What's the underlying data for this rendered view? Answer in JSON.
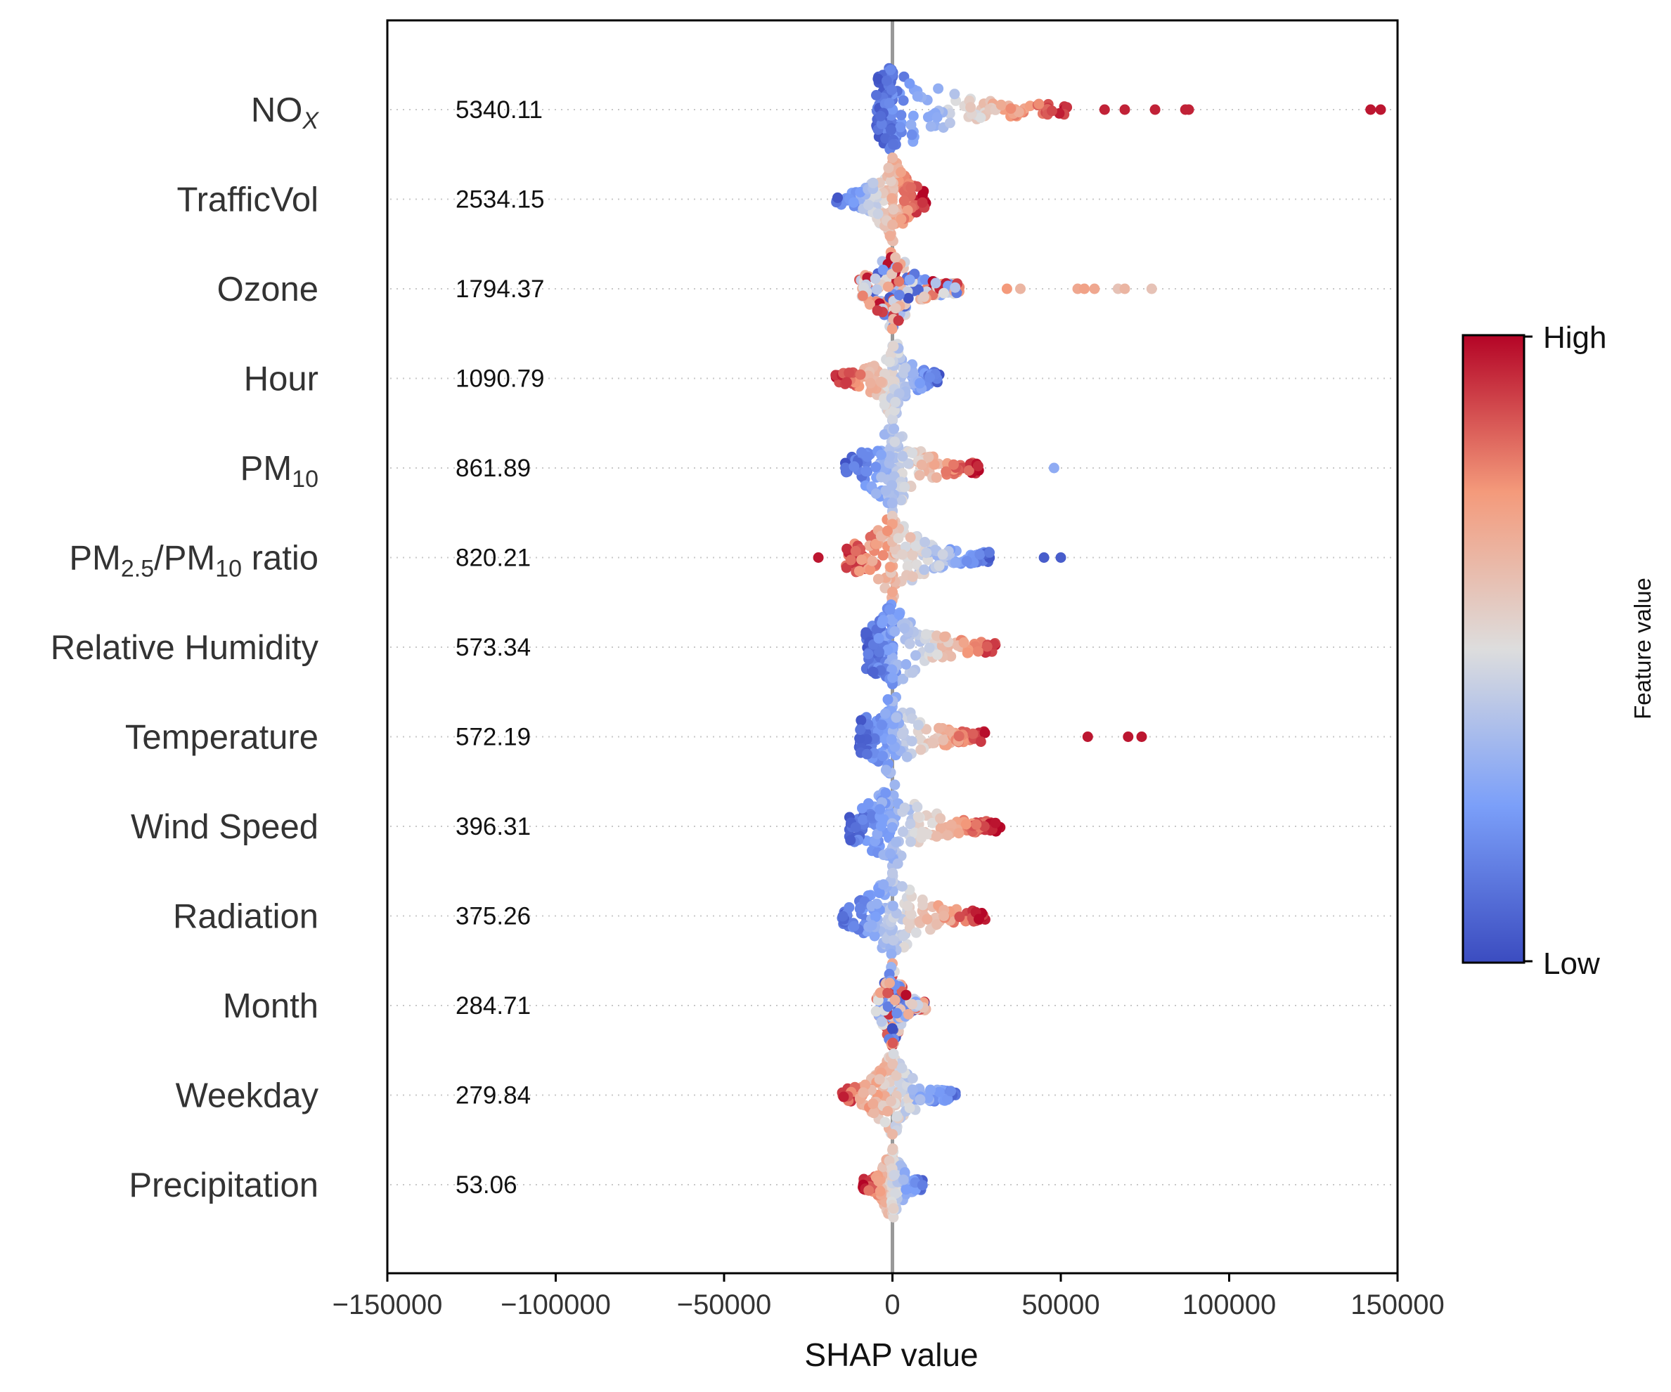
{
  "chart_data": {
    "type": "scatter",
    "subtype": "shap-beeswarm",
    "xlabel": "SHAP value",
    "xlim": [
      -150000,
      150000
    ],
    "xticks": [
      -150000,
      -100000,
      -50000,
      0,
      50000,
      100000,
      150000
    ],
    "xtick_labels": [
      "−150000",
      "−100000",
      "−50000",
      "0",
      "50000",
      "100000",
      "150000"
    ],
    "zero_line": true,
    "colorbar": {
      "title": "Feature value",
      "high_label": "High",
      "low_label": "Low",
      "low_color": "#3b4cc0",
      "mid_color": "#dddddd",
      "high_color": "#b40426"
    },
    "features": [
      {
        "name": "NO",
        "sub": "X",
        "sub_italic": true,
        "importance": "5340.11",
        "min": -5000,
        "max": 52000,
        "outliers": [
          [
            63000,
            0.95
          ],
          [
            69000,
            0.95
          ],
          [
            78000,
            0.95
          ],
          [
            87000,
            0.95
          ],
          [
            88000,
            0.95
          ],
          [
            142000,
            0.97
          ],
          [
            145000,
            0.97
          ]
        ],
        "spread": "high-right"
      },
      {
        "name": "TrafficVol",
        "importance": "2534.15",
        "min": -17000,
        "max": 10000,
        "outliers": [],
        "spread": "high-right"
      },
      {
        "name": "Ozone",
        "importance": "1794.37",
        "min": -10000,
        "max": 20000,
        "outliers": [
          [
            34000,
            0.75
          ],
          [
            38000,
            0.65
          ],
          [
            55000,
            0.7
          ],
          [
            57000,
            0.72
          ],
          [
            60000,
            0.7
          ],
          [
            67000,
            0.6
          ],
          [
            69000,
            0.65
          ],
          [
            77000,
            0.6
          ]
        ],
        "spread": "mixed"
      },
      {
        "name": "Hour",
        "importance": "1090.79",
        "min": -17000,
        "max": 14000,
        "outliers": [],
        "spread": "high-left"
      },
      {
        "name": "PM",
        "sub": "10",
        "importance": "861.89",
        "min": -14000,
        "max": 26000,
        "outliers": [
          [
            48000,
            0.3
          ]
        ],
        "spread": "high-right"
      },
      {
        "name": "PM",
        "sub": "2.5",
        "mid": "/PM",
        "sub2": "10",
        "suffix": " ratio",
        "importance": "820.21",
        "min": -14000,
        "max": 29000,
        "outliers": [
          [
            -22000,
            0.97
          ],
          [
            45000,
            0.05
          ],
          [
            50000,
            0.05
          ]
        ],
        "spread": "low-right"
      },
      {
        "name": "Relative Humidity",
        "importance": "573.34",
        "min": -8000,
        "max": 32000,
        "outliers": [],
        "spread": "high-right"
      },
      {
        "name": "Temperature",
        "importance": "572.19",
        "min": -10000,
        "max": 28000,
        "outliers": [
          [
            58000,
            0.97
          ],
          [
            70000,
            0.97
          ],
          [
            74000,
            0.97
          ]
        ],
        "spread": "high-right"
      },
      {
        "name": "Wind Speed",
        "importance": "396.31",
        "min": -13000,
        "max": 32000,
        "outliers": [],
        "spread": "high-right"
      },
      {
        "name": "Radiation",
        "importance": "375.26",
        "min": -15000,
        "max": 28000,
        "outliers": [],
        "spread": "high-right"
      },
      {
        "name": "Month",
        "importance": "284.71",
        "min": -5000,
        "max": 10000,
        "outliers": [],
        "spread": "mixed"
      },
      {
        "name": "Weekday",
        "importance": "279.84",
        "min": -15000,
        "max": 19000,
        "outliers": [],
        "spread": "low-right"
      },
      {
        "name": "Precipitation",
        "importance": "53.06",
        "min": -9000,
        "max": 9000,
        "outliers": [],
        "spread": "high-left"
      }
    ]
  }
}
